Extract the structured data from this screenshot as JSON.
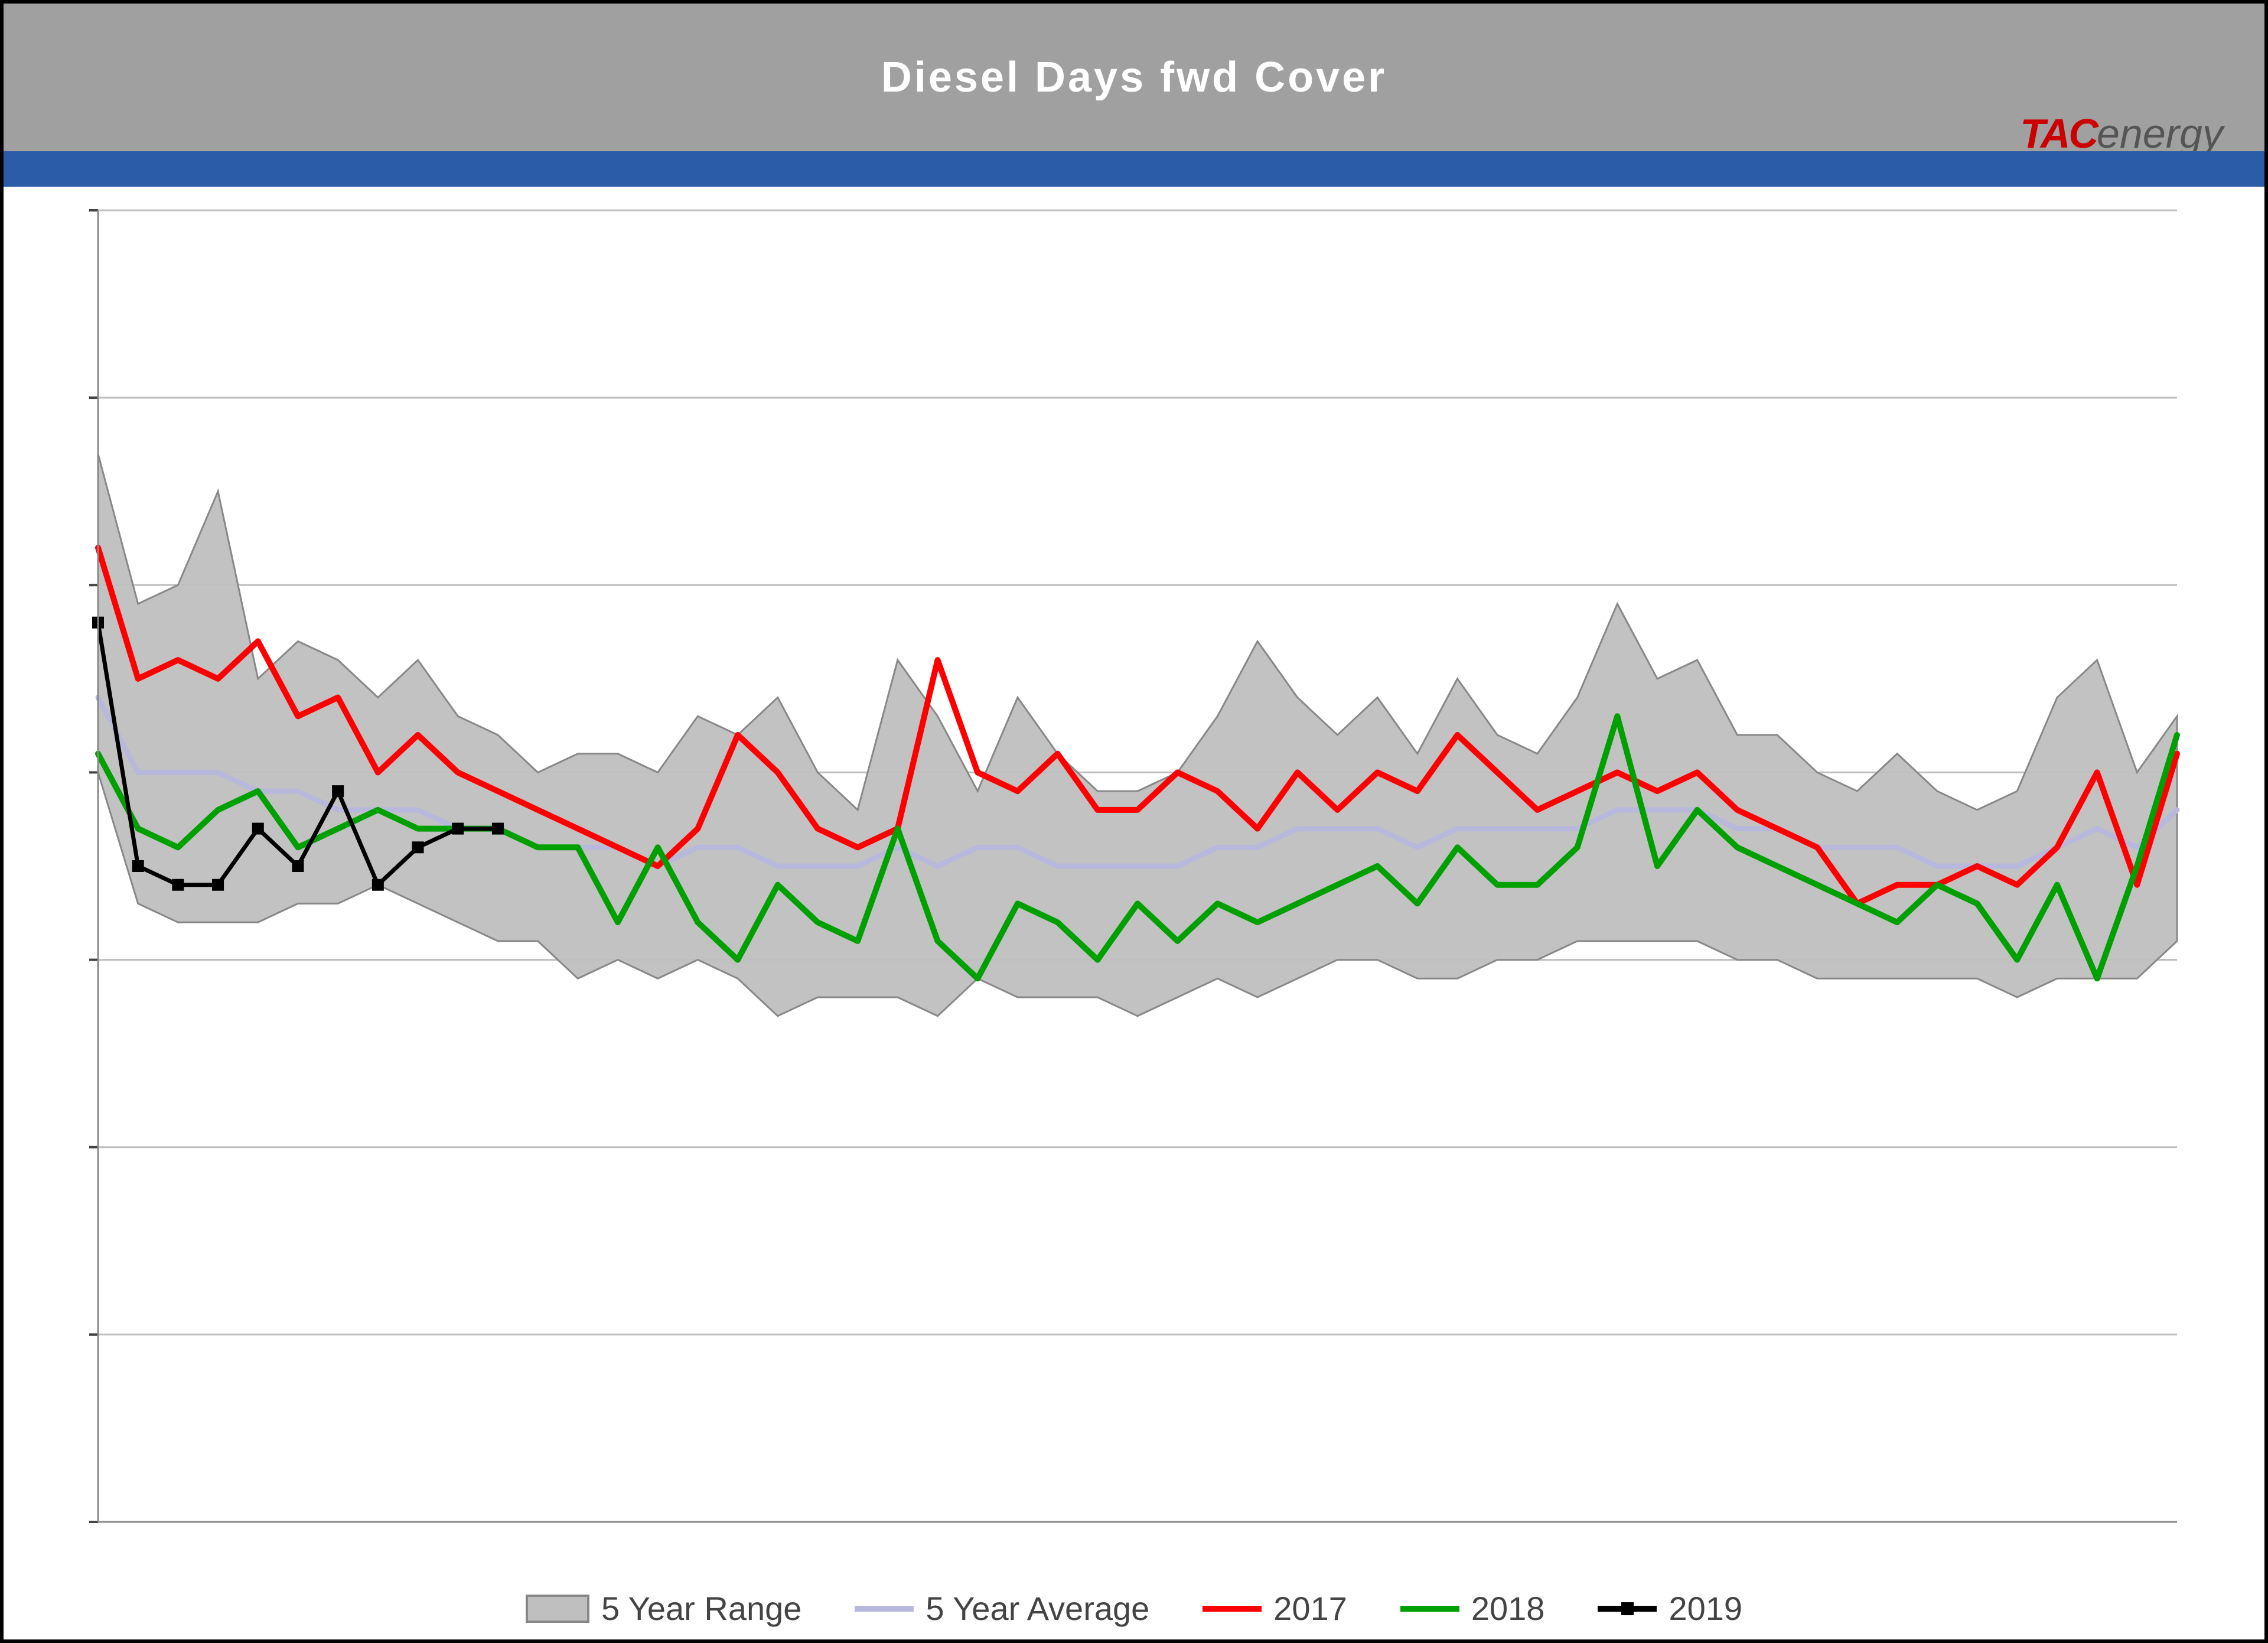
{
  "title": "Diesel Days fwd Cover",
  "logo": {
    "part1": "TAC",
    "part2": "energy"
  },
  "chart": {
    "type": "line-with-range-band",
    "background_color": "#ffffff",
    "grid_color": "#bfbfbf",
    "band_fill": "#bfbfbf",
    "band_stroke": "#888888",
    "ylim": [
      0,
      70
    ],
    "ytick_step": 10,
    "xlim": [
      1,
      53
    ],
    "line_width_main": 10,
    "line_width_avg": 9,
    "line_width_2019": 7,
    "marker_size_2019": 20,
    "series": {
      "range_high": {
        "label": "5 Year Range",
        "color": "#bfbfbf",
        "values": [
          57,
          49,
          50,
          55,
          45,
          47,
          46,
          44,
          46,
          43,
          42,
          40,
          41,
          41,
          40,
          43,
          42,
          44,
          40,
          38,
          46,
          43,
          39,
          44,
          41,
          39,
          39,
          40,
          43,
          47,
          44,
          42,
          44,
          41,
          45,
          42,
          41,
          44,
          49,
          45,
          46,
          42,
          42,
          40,
          39,
          41,
          39,
          38,
          39,
          44,
          46,
          40,
          43
        ]
      },
      "range_low": {
        "values": [
          40,
          33,
          32,
          32,
          32,
          33,
          33,
          34,
          33,
          32,
          31,
          31,
          29,
          30,
          29,
          30,
          29,
          27,
          28,
          28,
          28,
          27,
          29,
          28,
          28,
          28,
          27,
          28,
          29,
          28,
          29,
          30,
          30,
          29,
          29,
          30,
          30,
          31,
          31,
          31,
          31,
          30,
          30,
          29,
          29,
          29,
          29,
          29,
          28,
          29,
          29,
          29,
          31
        ]
      },
      "avg": {
        "label": "5 Year Average",
        "color": "#b8b8dc",
        "values": [
          44,
          40,
          40,
          40,
          39,
          39,
          38,
          38,
          38,
          37,
          37,
          36,
          36,
          36,
          35,
          36,
          36,
          35,
          35,
          35,
          36,
          35,
          36,
          36,
          35,
          35,
          35,
          35,
          36,
          36,
          37,
          37,
          37,
          36,
          37,
          37,
          37,
          37,
          38,
          38,
          38,
          37,
          37,
          36,
          36,
          36,
          35,
          35,
          35,
          36,
          37,
          36,
          38
        ]
      },
      "s2017": {
        "label": "2017",
        "color": "#ff0000",
        "values": [
          52,
          45,
          46,
          45,
          47,
          43,
          44,
          40,
          42,
          40,
          39,
          38,
          37,
          36,
          35,
          37,
          42,
          40,
          37,
          36,
          37,
          46,
          40,
          39,
          41,
          38,
          38,
          40,
          39,
          37,
          40,
          38,
          40,
          39,
          42,
          40,
          38,
          39,
          40,
          39,
          40,
          38,
          37,
          36,
          33,
          34,
          34,
          35,
          34,
          36,
          40,
          34,
          41
        ]
      },
      "s2018": {
        "label": "2018",
        "color": "#00a000",
        "values": [
          41,
          37,
          36,
          38,
          39,
          36,
          37,
          38,
          37,
          37,
          37,
          36,
          36,
          32,
          36,
          32,
          30,
          34,
          32,
          31,
          37,
          31,
          29,
          33,
          32,
          30,
          33,
          31,
          33,
          32,
          33,
          34,
          35,
          33,
          36,
          34,
          34,
          36,
          43,
          35,
          38,
          36,
          35,
          34,
          33,
          32,
          34,
          33,
          30,
          34,
          29,
          35,
          42
        ]
      },
      "s2019": {
        "label": "2019",
        "color": "#000000",
        "values": [
          48,
          35,
          34,
          34,
          37,
          35,
          39,
          34,
          36,
          37,
          37
        ]
      }
    },
    "legend_order": [
      "range_high",
      "avg",
      "s2017",
      "s2018",
      "s2019"
    ]
  }
}
